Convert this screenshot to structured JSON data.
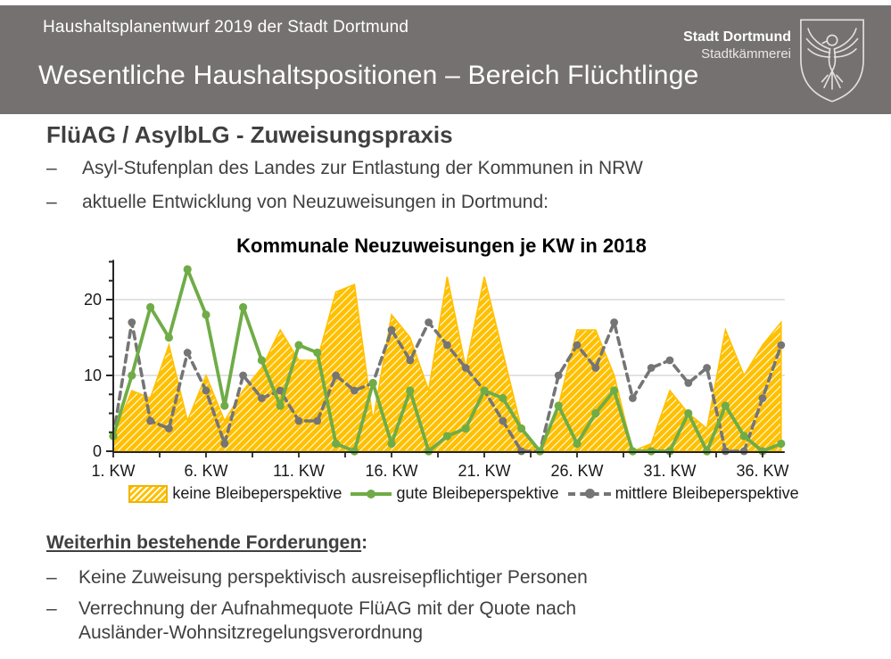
{
  "header": {
    "topline": "Haushaltsplanentwurf 2019 der Stadt Dortmund",
    "title": "Wesentliche Haushaltspositionen – Bereich Flüchtlinge",
    "org_name": "Stadt Dortmund",
    "org_unit": "Stadtkämmerei"
  },
  "section": {
    "title": "FlüAG / AsylbLG - Zuweisungspraxis",
    "bullets": [
      "Asyl-Stufenplan des Landes zur Entlastung der Kommunen in NRW",
      "aktuelle Entwicklung von Neuzuweisungen in Dortmund:"
    ]
  },
  "misc": {
    "dash": "–"
  },
  "chart_data": {
    "type": "area",
    "title": "Kommunale Neuzuweisungen je KW in 2018",
    "xlabel": "",
    "ylabel": "",
    "x": [
      1,
      2,
      3,
      4,
      5,
      6,
      7,
      8,
      9,
      10,
      11,
      12,
      13,
      14,
      15,
      16,
      17,
      18,
      19,
      20,
      21,
      22,
      23,
      24,
      25,
      26,
      27,
      28,
      29,
      30,
      31,
      32,
      33,
      34,
      35,
      36,
      37
    ],
    "x_unit": "KW",
    "x_ticks": [
      {
        "week": 1,
        "label": "1. KW"
      },
      {
        "week": 6,
        "label": "6. KW"
      },
      {
        "week": 11,
        "label": "11. KW"
      },
      {
        "week": 16,
        "label": "16. KW"
      },
      {
        "week": 21,
        "label": "21. KW"
      },
      {
        "week": 26,
        "label": "26. KW"
      },
      {
        "week": 31,
        "label": "31. KW"
      },
      {
        "week": 36,
        "label": "36. KW"
      }
    ],
    "ylim": [
      0,
      25
    ],
    "yticks": [
      {
        "value": 0,
        "label": "0"
      },
      {
        "value": 10,
        "label": "10"
      },
      {
        "value": 20,
        "label": "20"
      }
    ],
    "grid_values": [
      10,
      20
    ],
    "grid_color": "#d9d9d9",
    "axis_color": "#262626",
    "legend_position": "bottom",
    "series": [
      {
        "name": "keine Bleibeperspektive",
        "type": "area",
        "style": "hatched",
        "color": "#ffc000",
        "values": [
          2,
          8,
          7,
          14,
          4,
          10,
          4,
          8,
          11,
          16,
          12,
          12,
          21,
          22,
          4,
          18,
          15,
          8,
          23,
          11,
          23,
          13,
          3,
          0,
          6,
          16,
          16,
          10,
          0,
          1,
          8,
          5,
          3,
          16,
          10,
          14,
          17
        ]
      },
      {
        "name": "gute Bleibeperspektive",
        "type": "line",
        "style": "solid-markers",
        "color": "#6fac47",
        "values": [
          2,
          10,
          19,
          15,
          24,
          18,
          6,
          19,
          12,
          6,
          14,
          13,
          1,
          0,
          9,
          1,
          8,
          0,
          2,
          3,
          8,
          7,
          3,
          0,
          6,
          1,
          5,
          8,
          0,
          0,
          0,
          5,
          0,
          6,
          2,
          0,
          1
        ]
      },
      {
        "name": "mittlere Bleibeperspektive",
        "type": "line",
        "style": "dashed-markers",
        "color": "#757575",
        "values": [
          2,
          17,
          4,
          3,
          13,
          8,
          1,
          10,
          7,
          8,
          4,
          4,
          10,
          8,
          9,
          16,
          12,
          17,
          14,
          11,
          8,
          4,
          0,
          0,
          10,
          14,
          11,
          17,
          7,
          11,
          12,
          9,
          11,
          0,
          0,
          7,
          14
        ]
      }
    ]
  },
  "forderungen": {
    "heading": "Weiterhin bestehende Forderungen",
    "colon": ":",
    "bullets": [
      "Keine Zuweisung perspektivisch ausreisepflichtiger Personen",
      "Verrechnung der Aufnahmequote FlüAG mit der Quote nach Ausländer-Wohnsitzregelungsverordnung"
    ]
  }
}
